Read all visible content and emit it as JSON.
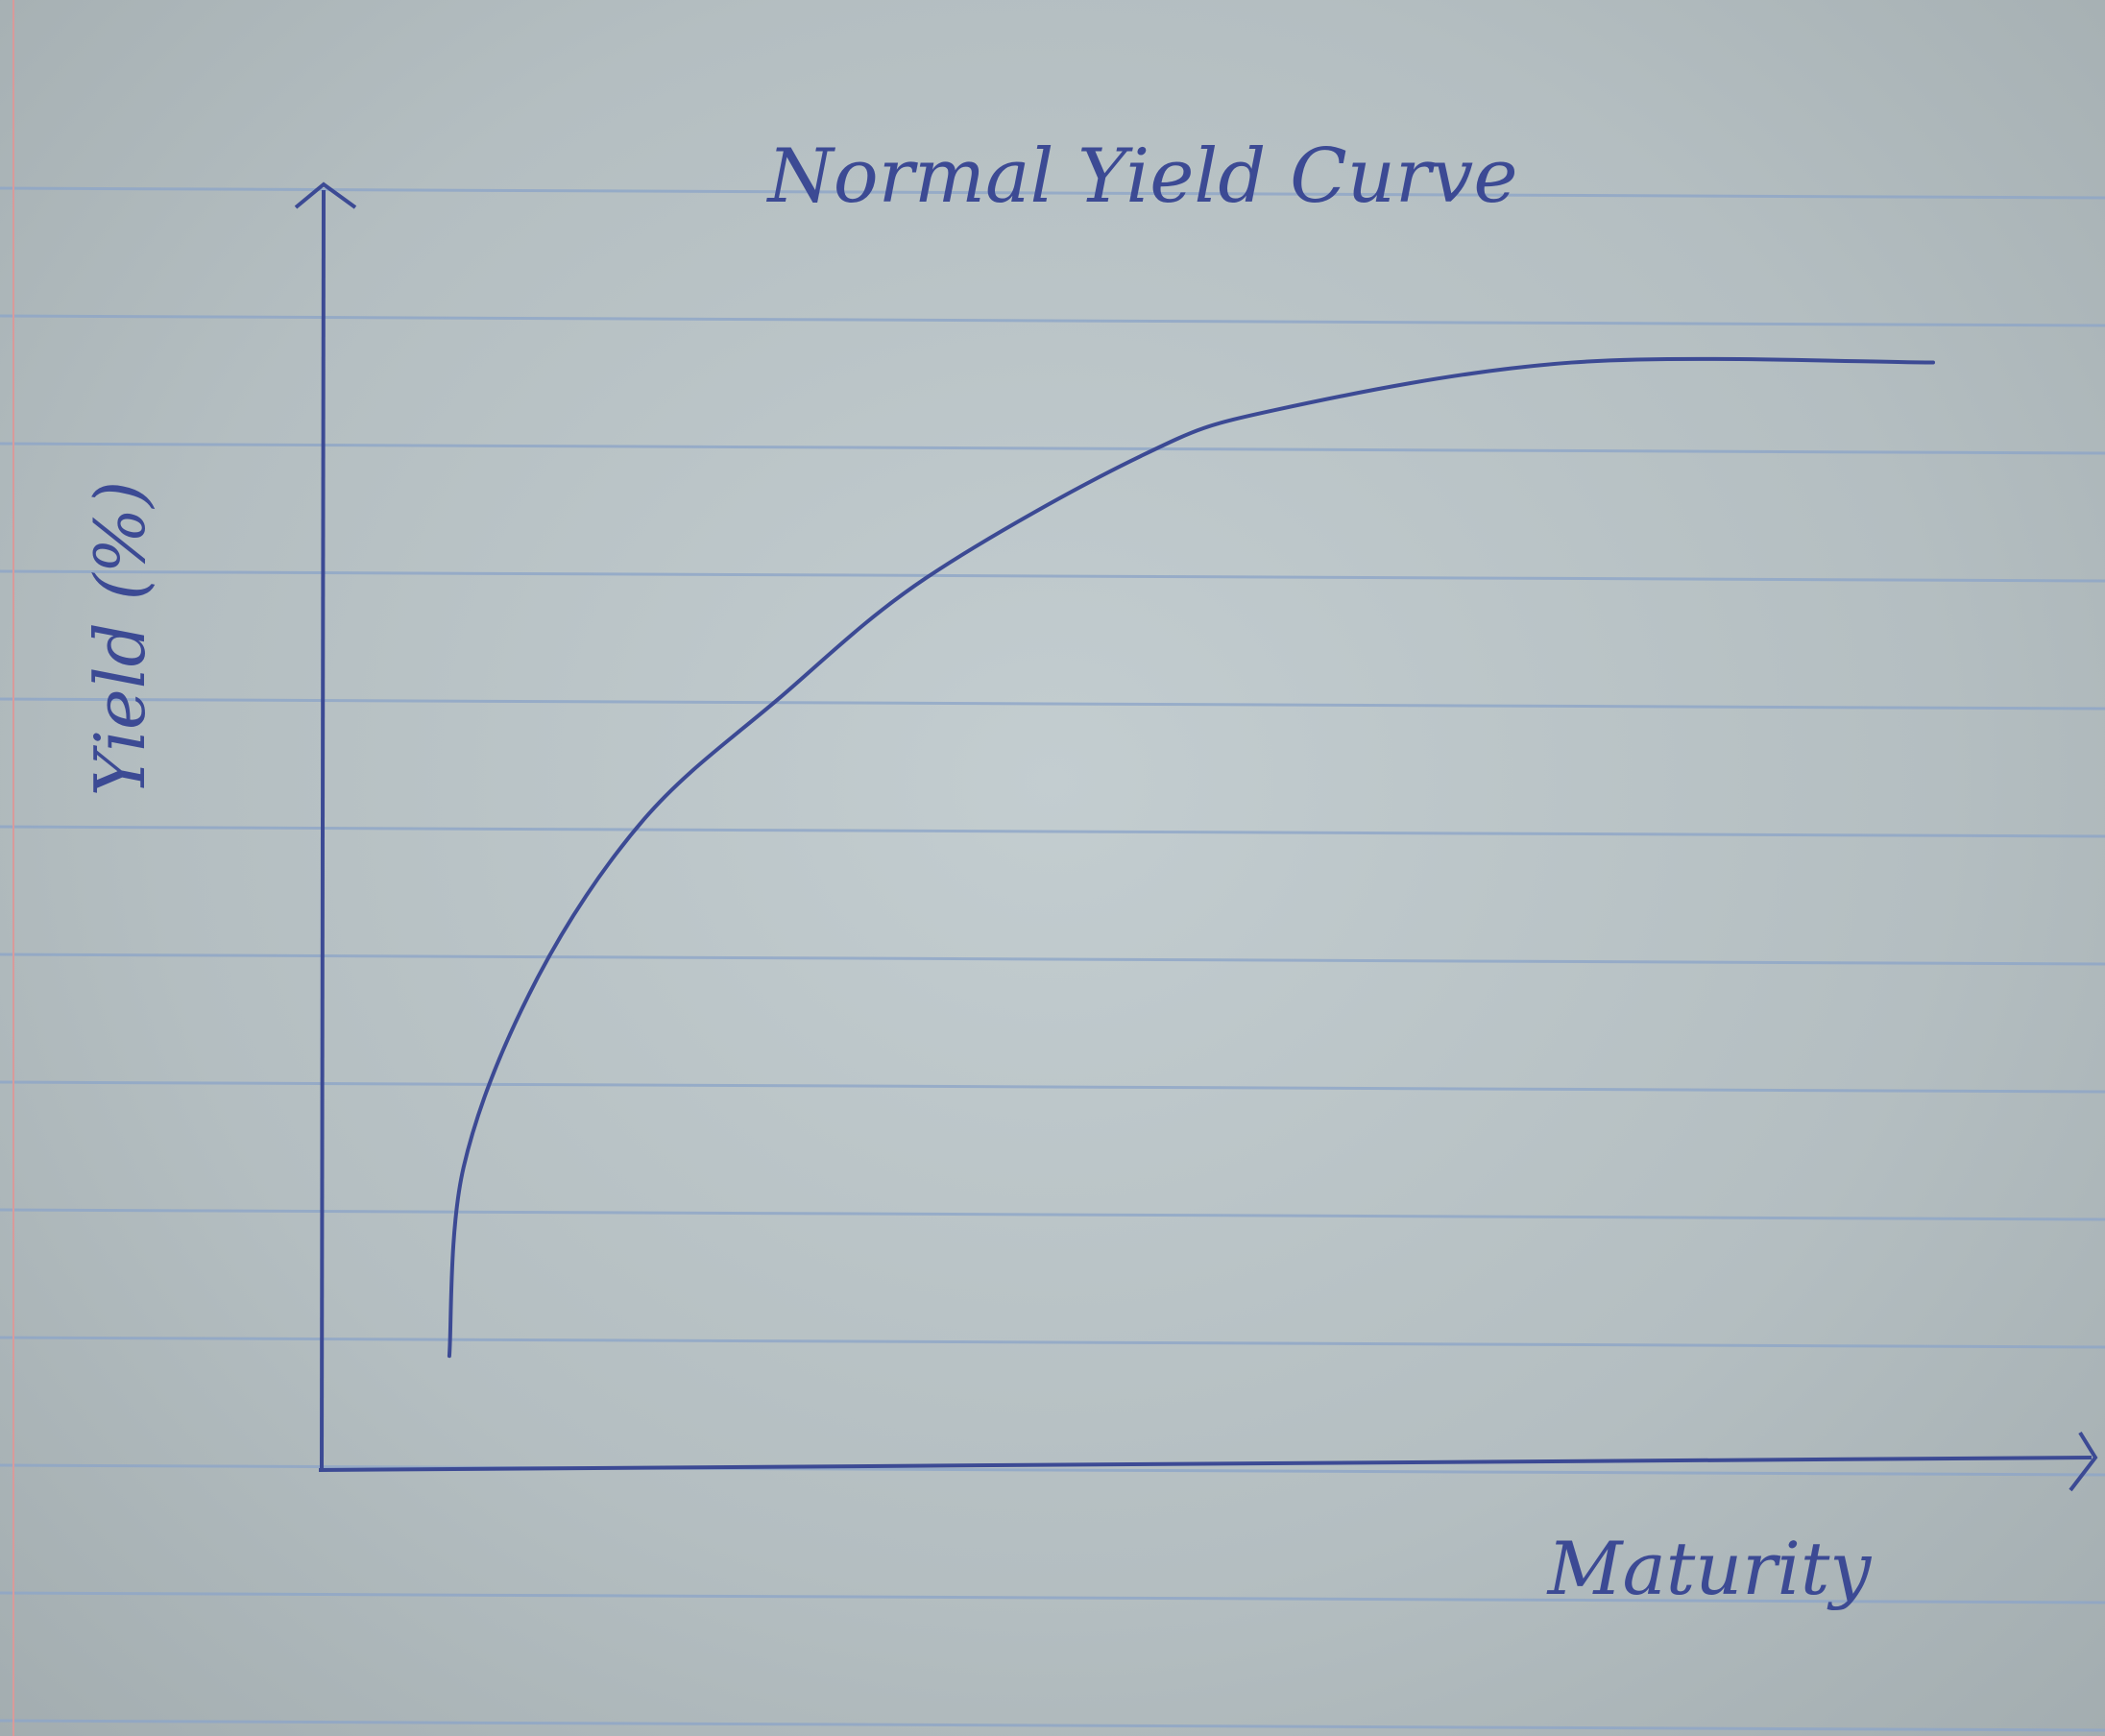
{
  "chart_data": {
    "type": "line",
    "title": "Normal Yield Curve",
    "xlabel": "Maturity",
    "ylabel": "Yield (%)",
    "xlim": [
      0,
      100
    ],
    "ylim": [
      0,
      100
    ],
    "grid": false,
    "legend": "none",
    "x_ticks": [],
    "y_ticks": [],
    "series": [
      {
        "x": [
          7.2,
          8.0,
          12.1,
          18.2,
          25.8,
          34.1,
          46.2,
          53.8,
          70.5,
          90.9
        ],
        "y": [
          8.9,
          23.6,
          38.2,
          50.8,
          60.2,
          69.6,
          79.1,
          82.7,
          86.4,
          86.4
        ],
        "color": "#3c4a94"
      }
    ]
  },
  "style": {
    "ink_color": "#3c4a94",
    "rule_color": "#8ea6c8",
    "margin_color": "#d99a9a"
  }
}
